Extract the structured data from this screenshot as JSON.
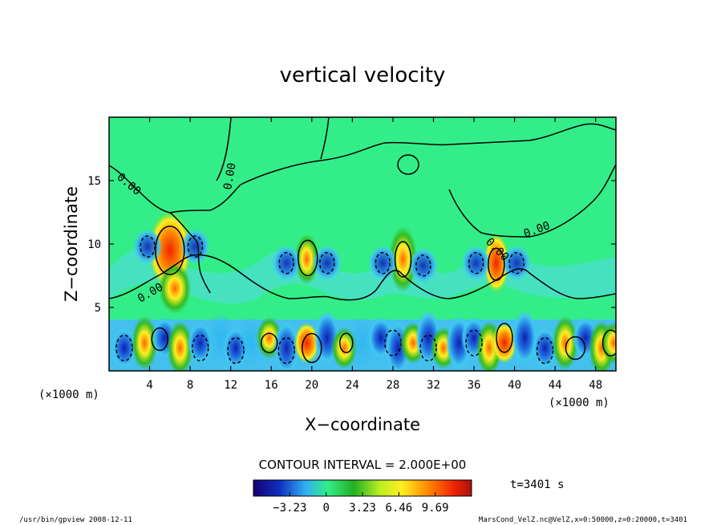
{
  "chart_data": {
    "type": "heatmap",
    "title": "vertical velocity",
    "xlabel": "X−coordinate",
    "ylabel": "Z−coordinate",
    "x_unit": "(×1000 m)",
    "y_unit": "(×1000 m)",
    "xlim": [
      0,
      50
    ],
    "ylim": [
      0,
      20
    ],
    "x_ticks": [
      "4",
      "8",
      "12",
      "16",
      "20",
      "24",
      "28",
      "32",
      "36",
      "40",
      "44",
      "48"
    ],
    "y_ticks": [
      "5",
      "10",
      "15"
    ],
    "contour_label": "0.00",
    "contour_interval_text": "CONTOUR INTERVAL = 2.000E+00",
    "time_text": "t=3401 s",
    "colorbar_ticks": [
      "−3.23",
      "0",
      "3.23",
      "6.46",
      "9.69"
    ],
    "colorbar_range": [
      -6.46,
      12.92
    ],
    "features": [
      {
        "x": 6.0,
        "z": 9.5,
        "value": 9.69
      },
      {
        "x": 19.5,
        "z": 1.8,
        "value": 9.0
      },
      {
        "x": 29.0,
        "z": 8.8,
        "value": 6.46
      },
      {
        "x": 38.2,
        "z": 8.5,
        "value": 9.0
      },
      {
        "x": 39.0,
        "z": 2.5,
        "value": 6.46
      }
    ],
    "footer_left": "/usr/bin/gpview   2008-12-11",
    "footer_right": "MarsCond_VelZ.nc@VelZ,x=0:50000,z=0:20000,t=3401"
  },
  "colors": {
    "background": "#33ee88",
    "deep_blue": "#1030c0",
    "light_blue": "#30c0f0",
    "green": "#22cc22",
    "yellow": "#ffee22",
    "red": "#ee2200"
  }
}
